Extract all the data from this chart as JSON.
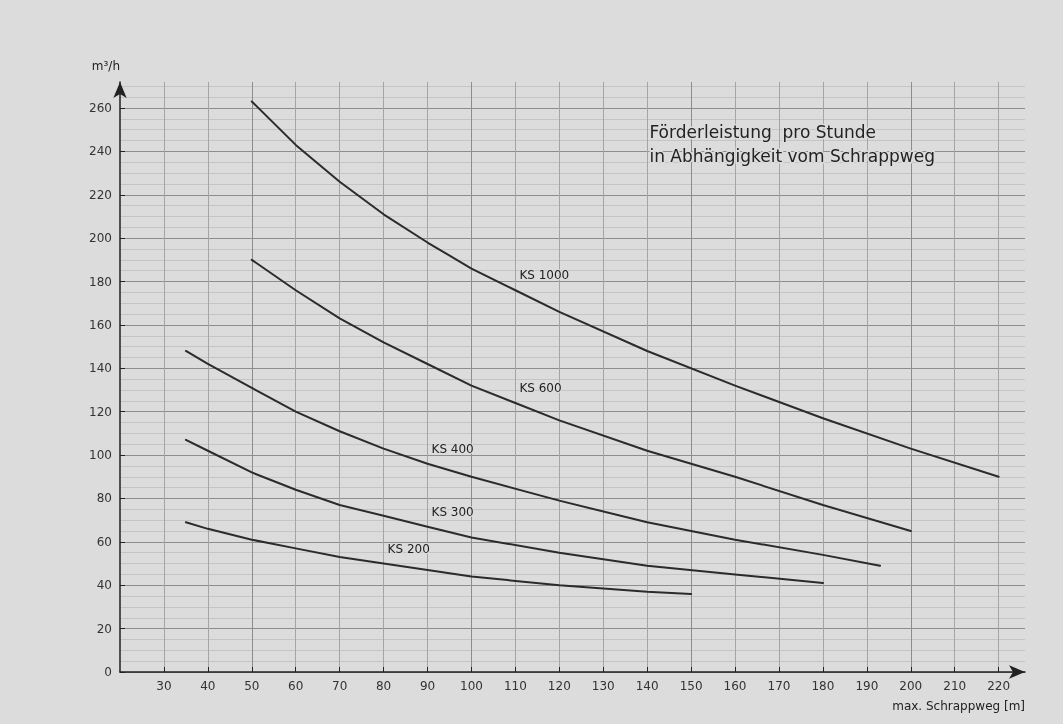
{
  "chart_data": {
    "type": "line",
    "title": "Förderleistung  pro Stunde\nin Abhängigkeit vom Schrappweg",
    "xlabel": "max. Schrappweg [m]",
    "ylabel": "m³/h",
    "xlim": [
      20,
      226
    ],
    "xticks": [
      30,
      40,
      50,
      60,
      70,
      80,
      90,
      100,
      110,
      120,
      130,
      140,
      150,
      160,
      170,
      180,
      190,
      200,
      210,
      220
    ],
    "ylim": [
      0,
      272
    ],
    "yticks": [
      0,
      20,
      40,
      60,
      80,
      100,
      120,
      140,
      160,
      180,
      200,
      220,
      240,
      260
    ],
    "grid": true,
    "legend": false,
    "marker": "none",
    "line_style": "solid",
    "series": [
      {
        "name": "KS 1000",
        "color": "#2b2b2b",
        "x": [
          50,
          60,
          70,
          80,
          90,
          100,
          110,
          120,
          140,
          160,
          180,
          200,
          220
        ],
        "values": [
          263,
          243,
          226,
          211,
          198,
          186,
          176,
          166,
          148,
          132,
          117,
          103,
          90
        ]
      },
      {
        "name": "KS 600",
        "color": "#2b2b2b",
        "x": [
          50,
          60,
          70,
          80,
          90,
          100,
          110,
          120,
          140,
          160,
          180,
          200
        ],
        "values": [
          190,
          176,
          163,
          152,
          142,
          132,
          124,
          116,
          102,
          90,
          77,
          65
        ]
      },
      {
        "name": "KS 400",
        "color": "#2b2b2b",
        "x": [
          35,
          40,
          50,
          60,
          70,
          80,
          90,
          100,
          120,
          140,
          160,
          180,
          193
        ],
        "values": [
          148,
          142,
          131,
          120,
          111,
          103,
          96,
          90,
          79,
          69,
          61,
          54,
          49
        ]
      },
      {
        "name": "KS 300",
        "color": "#2b2b2b",
        "x": [
          35,
          40,
          50,
          60,
          70,
          80,
          90,
          100,
          120,
          140,
          160,
          180
        ],
        "values": [
          107,
          102,
          92,
          84,
          77,
          72,
          67,
          62,
          55,
          49,
          45,
          41
        ]
      },
      {
        "name": "KS 200",
        "color": "#2b2b2b",
        "x": [
          35,
          40,
          50,
          60,
          70,
          80,
          90,
          100,
          120,
          140,
          150
        ],
        "values": [
          69,
          66,
          61,
          57,
          53,
          50,
          47,
          44,
          40,
          37,
          36
        ]
      }
    ]
  }
}
